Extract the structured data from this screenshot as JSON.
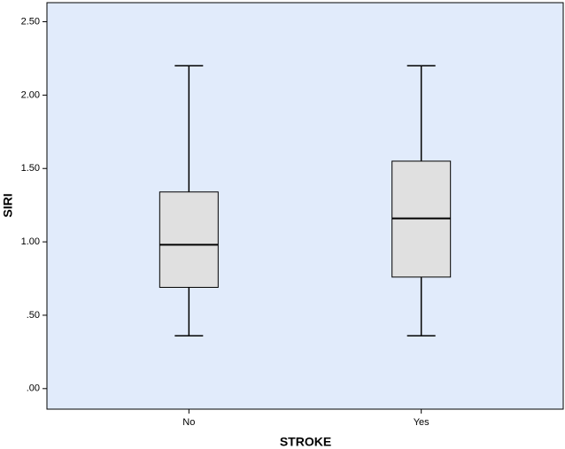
{
  "chart_data": {
    "type": "box",
    "x_label": "STROKE",
    "y_label": "SIRI",
    "categories": [
      "No",
      "Yes"
    ],
    "boxes": [
      {
        "min": 0.36,
        "q1": 0.69,
        "median": 0.98,
        "q3": 1.34,
        "max": 2.2
      },
      {
        "min": 0.36,
        "q1": 0.76,
        "median": 1.16,
        "q3": 1.55,
        "max": 2.2
      }
    ],
    "ylim": [
      -0.14,
      2.63
    ],
    "yticks": [
      {
        "value": 0,
        "label": ".00"
      },
      {
        "value": 0.5,
        "label": ".50"
      },
      {
        "value": 1,
        "label": "1.00"
      },
      {
        "value": 1.5,
        "label": "1.50"
      },
      {
        "value": 2,
        "label": "2.00"
      },
      {
        "value": 2.5,
        "label": "2.50"
      }
    ],
    "background": "#e1ebfb",
    "box_color": "#e0e0e0"
  }
}
